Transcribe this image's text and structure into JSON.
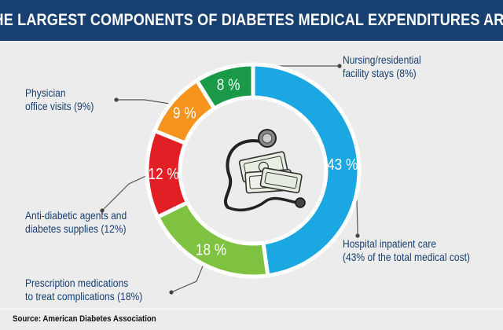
{
  "header": {
    "title": "THE LARGEST COMPONENTS OF DIABETES MEDICAL EXPENDITURES ARE:"
  },
  "source": "Source: American Diabetes Association",
  "colors": {
    "header_bg": "#173f70",
    "text": "#173f70",
    "hospital": "#1aa7e2",
    "prescription": "#7fc241",
    "antidiabetic": "#e31f26",
    "physician": "#f6941d",
    "nursing": "#1a9a48"
  },
  "chart_data": {
    "type": "pie",
    "variant": "donut",
    "slices": [
      {
        "key": "hospital",
        "value": 43,
        "label": "43 %",
        "color": "#1aa7e2",
        "legend_lines": [
          "Hospital inpatient care",
          "(43% of the total medical cost)"
        ]
      },
      {
        "key": "prescription",
        "value": 18,
        "label": "18 %",
        "color": "#7fc241",
        "legend_lines": [
          "Prescription medications",
          "to treat complications (18%)"
        ]
      },
      {
        "key": "antidiabetic",
        "value": 12,
        "label": "12 %",
        "color": "#e31f26",
        "legend_lines": [
          "Anti-diabetic agents and",
          "diabetes supplies (12%)"
        ]
      },
      {
        "key": "physician",
        "value": 9,
        "label": "9 %",
        "color": "#f6941d",
        "legend_lines": [
          "Physician",
          "office visits (9%)"
        ]
      },
      {
        "key": "nursing",
        "value": 8,
        "label": "8 %",
        "color": "#1a9a48",
        "legend_lines": [
          "Nursing/residential",
          "facility stays (8%)"
        ]
      }
    ],
    "center_illustration": "stethoscope-and-money-icon"
  }
}
